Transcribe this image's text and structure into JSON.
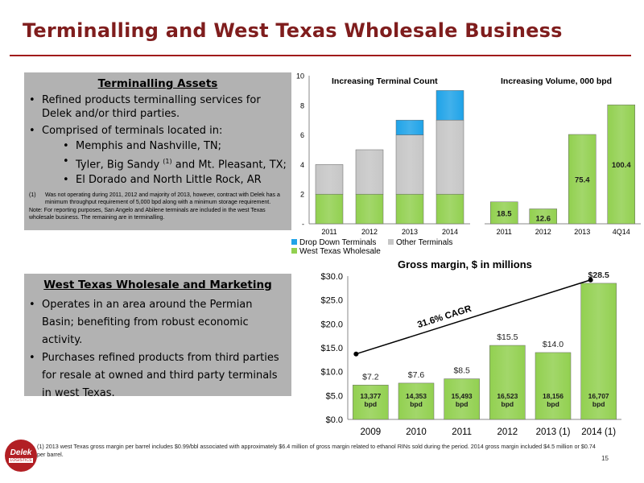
{
  "title": "Terminalling and West Texas Wholesale Business",
  "terminalling": {
    "heading": "Terminalling Assets",
    "bullets": [
      "Refined products terminalling services for Delek and/or third parties.",
      "Comprised of terminals located in:"
    ],
    "locations": [
      "Memphis and Nashville, TN;",
      "Tyler, Big Sandy",
      "El Dorado and North Little Rock, AR"
    ],
    "tyler_sup": "(1)",
    "tyler_suffix": " and Mt. Pleasant, TX;",
    "footnote_marker": "(1)",
    "footnote": "Was not operating during 2011, 2012 and majority of 2013, however, contract with Delek has a minimum throughput requirement of 5,000 bpd along with a minimum storage requirement.",
    "note": "Note: For reporting purposes, San Angelo and Abilene terminals are included in the west Texas wholesale business. The remaining are in terminalling."
  },
  "wholesale": {
    "heading": "West Texas Wholesale and Marketing",
    "bullets": [
      "Operates in an area around the Permian Basin; benefiting from robust economic activity.",
      "Purchases refined products from third parties for resale at owned and third party terminals in west Texas."
    ]
  },
  "chart_data": [
    {
      "type": "bar",
      "stacked": true,
      "title": "Increasing Terminal Count",
      "categories": [
        "2011",
        "2012",
        "2013",
        "2014"
      ],
      "series": [
        {
          "name": "West Texas Wholesale",
          "values": [
            2,
            2,
            2,
            2
          ],
          "color": "#92d050"
        },
        {
          "name": "Other Terminals",
          "values": [
            2,
            3,
            4,
            5
          ],
          "color": "#c6c6c6"
        },
        {
          "name": "Drop Down Terminals",
          "values": [
            0,
            0,
            1,
            2
          ],
          "color": "#1fa3e8"
        }
      ],
      "ylim": [
        0,
        10
      ],
      "yticks": [
        "-",
        "2",
        "4",
        "6",
        "8",
        "10"
      ],
      "legend": [
        "Drop Down Terminals",
        "Other Terminals",
        "West Texas Wholesale"
      ],
      "legend_position": "bottom-left"
    },
    {
      "type": "bar",
      "title": "Increasing Volume, 000 bpd",
      "categories": [
        "2011",
        "2012",
        "2013",
        "4Q14"
      ],
      "values": [
        18.5,
        12.6,
        75.4,
        100.4
      ],
      "labels": [
        "18.5",
        "12.6",
        "75.4",
        "100.4"
      ],
      "ylim": [
        0,
        125
      ],
      "color": "#92d050"
    },
    {
      "type": "bar",
      "title": "Gross margin, $ in millions",
      "categories": [
        "2009",
        "2010",
        "2011",
        "2012",
        "2013 (1)",
        "2014 (1)"
      ],
      "values": [
        7.2,
        7.6,
        8.5,
        15.5,
        14.0,
        28.5
      ],
      "value_labels": [
        "$7.2",
        "$7.6",
        "$8.5",
        "$15.5",
        "$14.0",
        "$28.5"
      ],
      "volume_labels": [
        "13,377 bpd",
        "14,353 bpd",
        "15,493 bpd",
        "16,523 bpd",
        "18,156 bpd",
        "16,707 bpd"
      ],
      "ylim": [
        0,
        30
      ],
      "yticks": [
        "$0.0",
        "$5.0",
        "$10.0",
        "$15.0",
        "$20.0",
        "$25.0",
        "$30.0"
      ],
      "trend": {
        "label": "31.6% CAGR",
        "from": 13.7,
        "to": 29.2
      },
      "color": "#92d050"
    }
  ],
  "footer": {
    "note": "(1) 2013 west Texas gross margin per barrel includes $0.99/bbl associated with approximately $6.4 million of gross margin related to ethanol RINs sold during the period. 2014 gross margin included $4.5 million or $0.74 per barrel.",
    "page": "15",
    "logo_word": "Delek",
    "logo_sub": "LOGISTICS"
  }
}
